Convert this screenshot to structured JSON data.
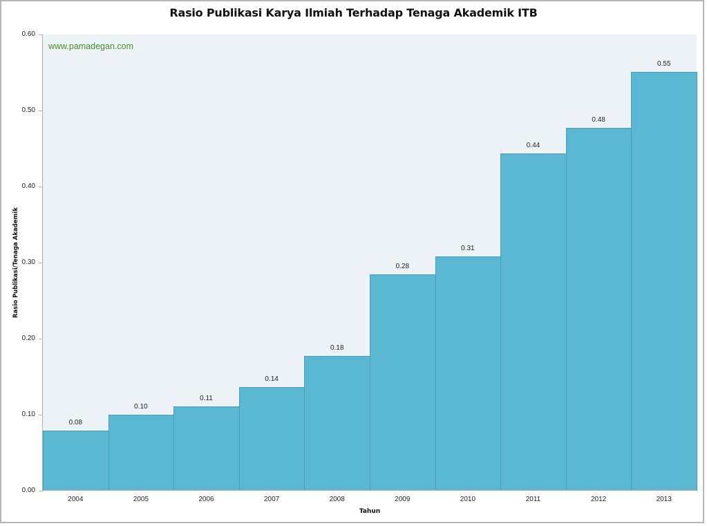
{
  "chart_data": {
    "type": "bar",
    "title": "Rasio Publikasi Karya Ilmiah Terhadap Tenaga Akademik ITB",
    "watermark": "www.pamadegan.com",
    "xlabel": "Tahun",
    "ylabel": "Rasio Publikasi/Tenaga Akademik",
    "categories": [
      "2004",
      "2005",
      "2006",
      "2007",
      "2008",
      "2009",
      "2010",
      "2011",
      "2012",
      "2013"
    ],
    "values": [
      0.08,
      0.1,
      0.11,
      0.14,
      0.18,
      0.28,
      0.31,
      0.44,
      0.48,
      0.55
    ],
    "bar_heights_estimated": [
      0.079,
      0.1,
      0.111,
      0.136,
      0.177,
      0.285,
      0.308,
      0.444,
      0.477,
      0.551
    ],
    "value_labels": [
      "0.08",
      "0.10",
      "0.11",
      "0.14",
      "0.18",
      "0.28",
      "0.31",
      "0.44",
      "0.48",
      "0.55"
    ],
    "yticks": [
      "0.00",
      "0.10",
      "0.20",
      "0.30",
      "0.40",
      "0.50",
      "0.60"
    ],
    "ylim": [
      0,
      0.6
    ],
    "grid": false,
    "legend": null,
    "colors": {
      "bar": "#5bb8d2",
      "bar_edge": "#4a9db5",
      "plot_bg": "#ecf2f6",
      "watermark": "#4d8c2b"
    }
  }
}
